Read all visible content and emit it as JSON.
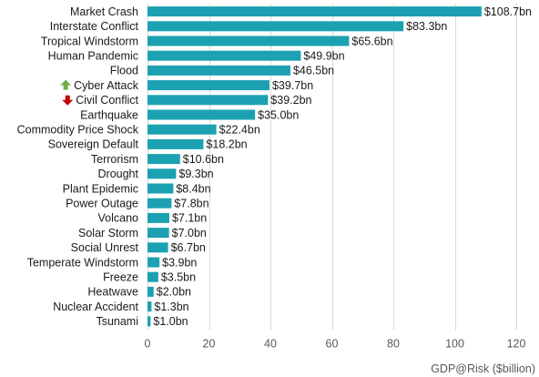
{
  "chart_data": {
    "type": "bar",
    "orientation": "horizontal",
    "title": "",
    "xlabel": "GDP@Risk  ($billion)",
    "ylabel": "",
    "xlim": [
      0,
      120
    ],
    "x_ticks": [
      0,
      20,
      40,
      60,
      80,
      100,
      120
    ],
    "grid": "vertical",
    "legend": "none",
    "bar_color": "#1ba1b2",
    "value_prefix": "$",
    "value_suffix": "bn",
    "categories": [
      "Market Crash",
      "Interstate Conflict",
      "Tropical Windstorm",
      "Human Pandemic",
      "Flood",
      "Cyber Attack",
      "Civil Conflict",
      "Earthquake",
      "Commodity Price Shock",
      "Sovereign Default",
      "Terrorism",
      "Drought",
      "Plant Epidemic",
      "Power Outage",
      "Volcano",
      "Solar Storm",
      "Social Unrest",
      "Temperate Windstorm",
      "Freeze",
      "Heatwave",
      "Nuclear Accident",
      "Tsunami"
    ],
    "values": [
      108.7,
      83.3,
      65.6,
      49.9,
      46.5,
      39.7,
      39.2,
      35.0,
      22.4,
      18.2,
      10.6,
      9.3,
      8.4,
      7.8,
      7.1,
      7.0,
      6.7,
      3.9,
      3.5,
      2.0,
      1.3,
      1.0
    ],
    "value_labels": [
      "$108.7bn",
      "$83.3bn",
      "$65.6bn",
      "$49.9bn",
      "$46.5bn",
      "$39.7bn",
      "$39.2bn",
      "$35.0bn",
      "$22.4bn",
      "$18.2bn",
      "$10.6bn",
      "$9.3bn",
      "$8.4bn",
      "$7.8bn",
      "$7.1bn",
      "$7.0bn",
      "$6.7bn",
      "$3.9bn",
      "$3.5bn",
      "$2.0bn",
      "$1.3bn",
      "$1.0bn"
    ],
    "markers": [
      {
        "category": "Cyber Attack",
        "icon": "arrow-up-icon",
        "color": "#70ad47"
      },
      {
        "category": "Civil Conflict",
        "icon": "arrow-down-icon",
        "color": "#c00000"
      }
    ]
  }
}
